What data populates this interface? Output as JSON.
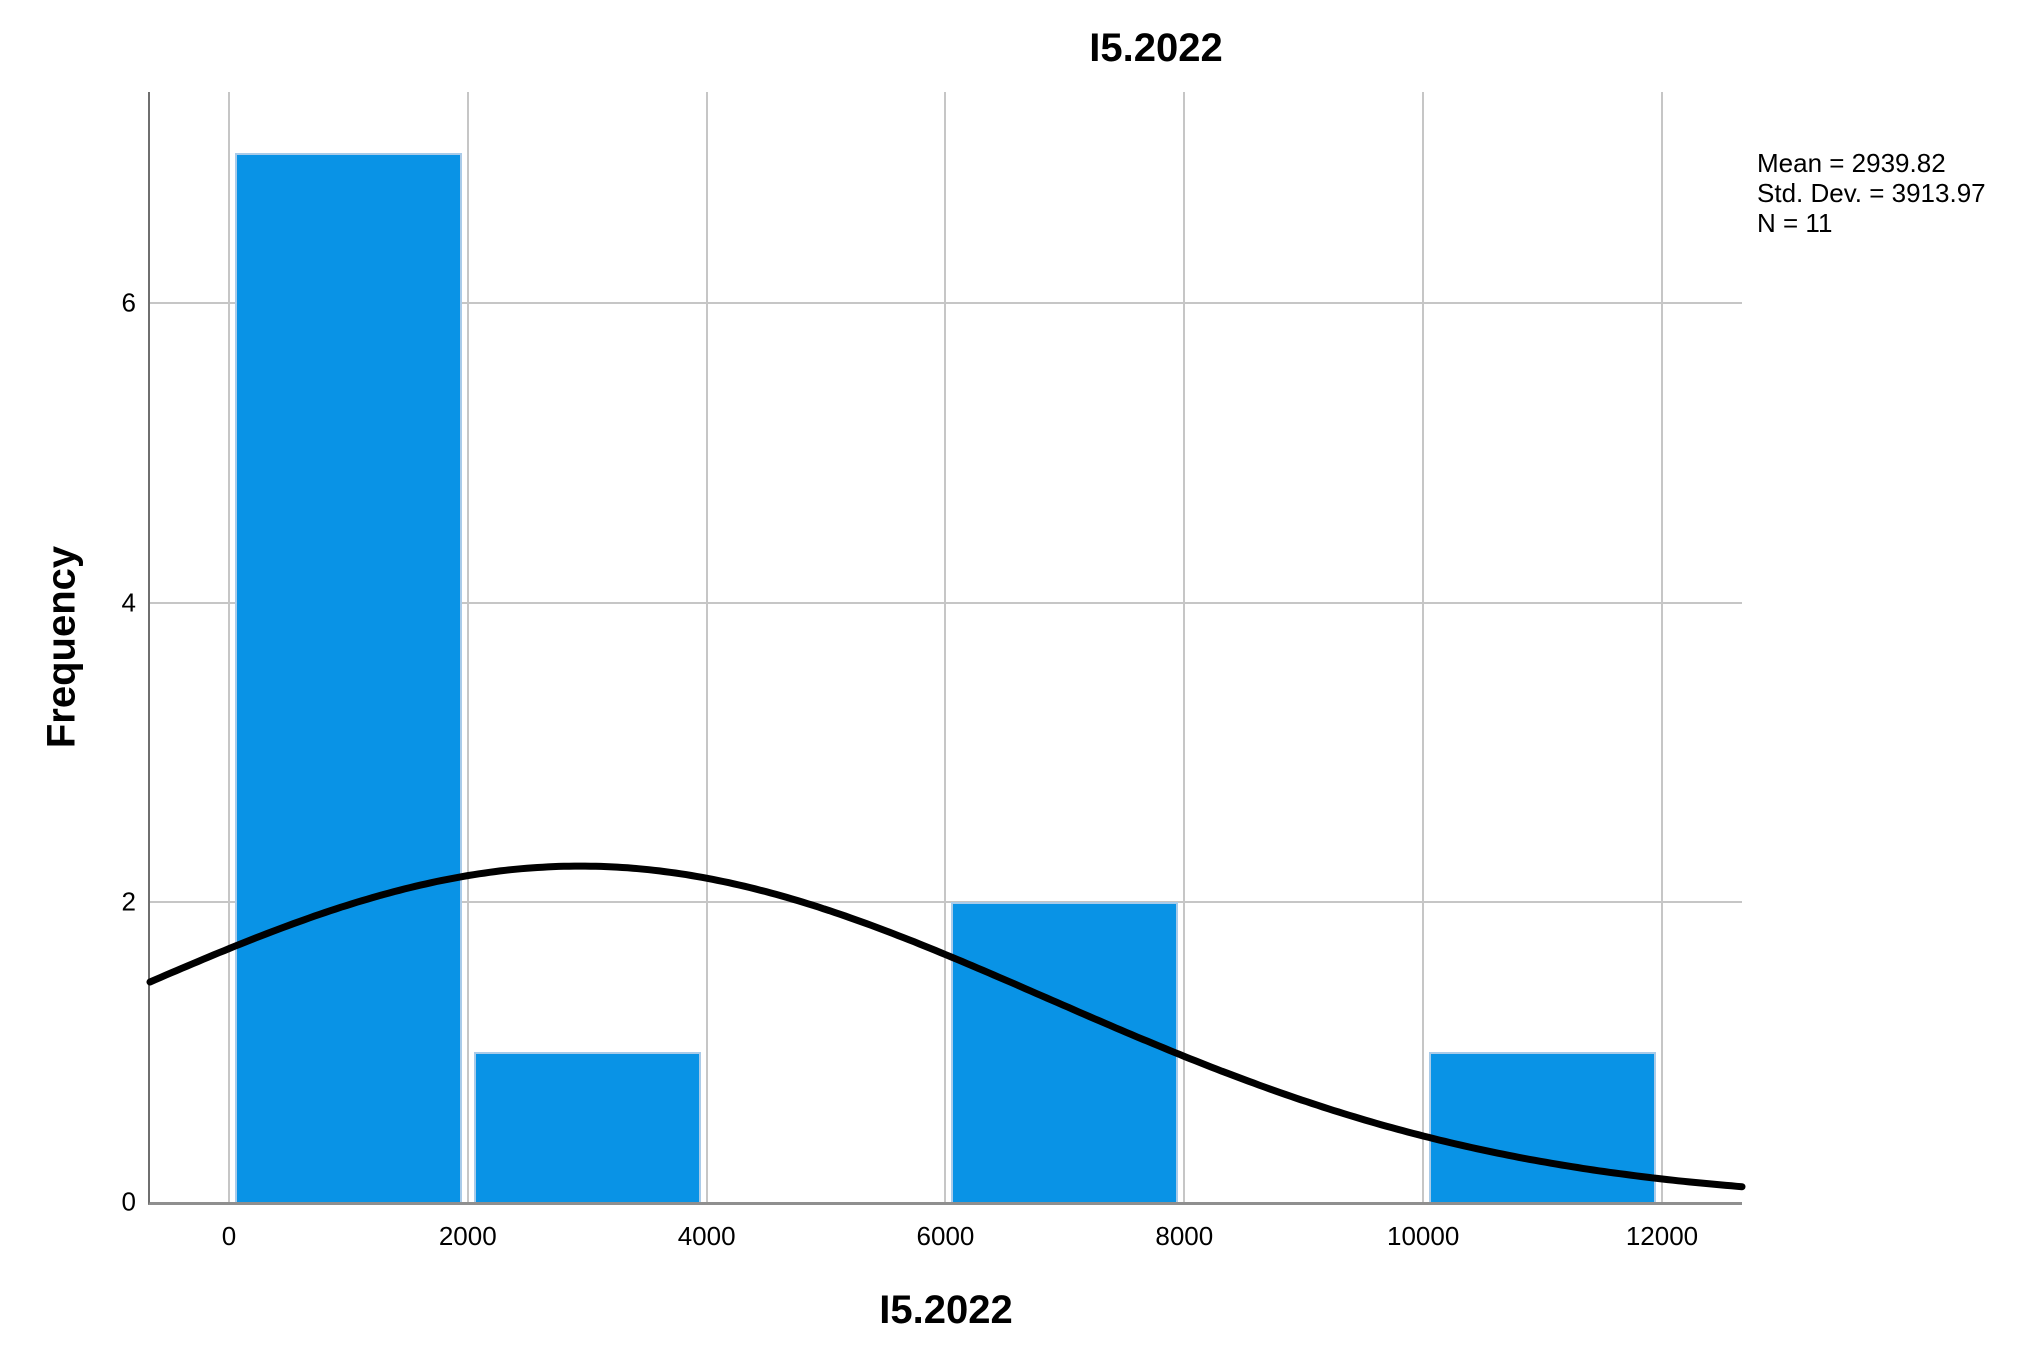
{
  "chart_data": {
    "type": "bar",
    "subtype": "histogram-with-normal-curve",
    "title": "I5.2022",
    "xlabel": "I5.2022",
    "ylabel": "Frequency",
    "bins": [
      {
        "x0": 0,
        "x1": 2000,
        "frequency": 7
      },
      {
        "x0": 2000,
        "x1": 4000,
        "frequency": 1
      },
      {
        "x0": 6000,
        "x1": 8000,
        "frequency": 2
      },
      {
        "x0": 10000,
        "x1": 12000,
        "frequency": 1
      }
    ],
    "bin_width": 2000,
    "x_ticks": [
      0,
      2000,
      4000,
      6000,
      8000,
      10000,
      12000
    ],
    "y_ticks": [
      0,
      2,
      4,
      6
    ],
    "x_range": [
      -661,
      12670
    ],
    "y_range": [
      0,
      7.41
    ],
    "grid": true,
    "normal_curve": {
      "mean": 2939.82,
      "std_dev": 3913.97,
      "n": 11
    },
    "stats": {
      "mean": "Mean = 2939.82",
      "std_dev": "Std. Dev. = 3913.97",
      "n": "N = 11"
    },
    "legend_position": "top-right-outside",
    "colors": {
      "bar_fill": "#0993e6",
      "bar_border": "#a9cbe9",
      "curve": "#000000",
      "gridline": "#c6c6c6",
      "axis": "#6f6f6f",
      "text": "#000000"
    }
  }
}
